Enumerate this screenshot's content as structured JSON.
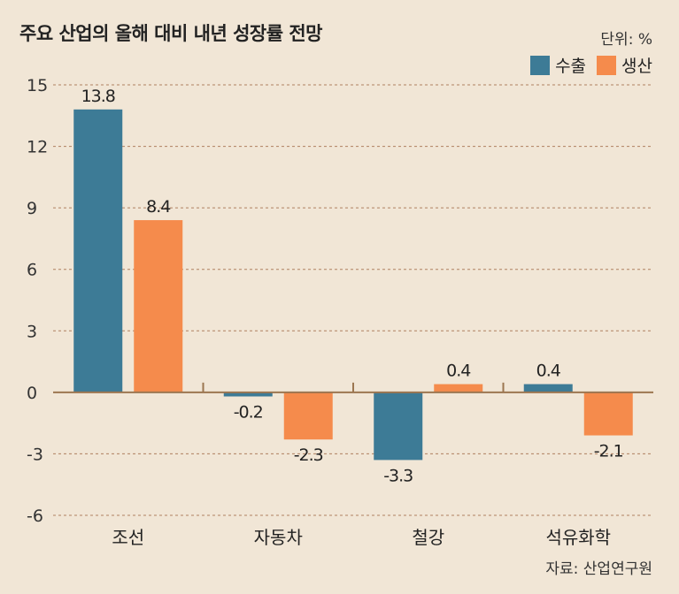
{
  "chart_data": {
    "type": "bar",
    "title": "주요 산업의 올해 대비 내년 성장률 전망",
    "unit_label": "단위: %",
    "source": "자료: 산업연구원",
    "categories": [
      "조선",
      "자동차",
      "철강",
      "석유화학"
    ],
    "series": [
      {
        "name": "수출",
        "color": "#3d7b96",
        "values": [
          13.8,
          -0.2,
          -3.3,
          0.4
        ]
      },
      {
        "name": "생산",
        "color": "#f58b4c",
        "values": [
          8.4,
          -2.3,
          0.4,
          -2.1
        ]
      }
    ],
    "value_labels": [
      [
        "13.8",
        "-0.2",
        "-3.3",
        "0.4"
      ],
      [
        "8.4",
        "-2.3",
        "0.4",
        "-2.1"
      ]
    ],
    "yticks": [
      15,
      12,
      9,
      6,
      3,
      0,
      -3,
      -6
    ],
    "ylim": [
      -6,
      15
    ],
    "grid": true,
    "legend_position": "top-right",
    "axis_color": "#9c7650",
    "grid_color": "#b08060"
  }
}
